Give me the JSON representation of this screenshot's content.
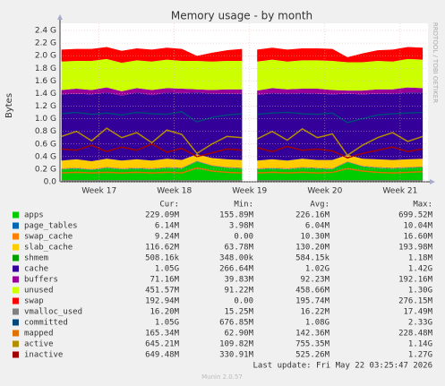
{
  "chart_data": {
    "type": "stacked-area",
    "title": "Memory usage - by month",
    "y_label": "Bytes",
    "side_note": "RRDTOOL / TOBI OETIKER",
    "footer": "Munin 2.0.57",
    "last_update": "Last update: Fri May 22 03:25:47 2026",
    "ylim": [
      0,
      2.4
    ],
    "yticks": [
      {
        "value": 0,
        "label": "0.0"
      },
      {
        "value": 0.2,
        "label": "0.2 G"
      },
      {
        "value": 0.4,
        "label": "0.4 G"
      },
      {
        "value": 0.6,
        "label": "0.6 G"
      },
      {
        "value": 0.8,
        "label": "0.8 G"
      },
      {
        "value": 1.0,
        "label": "1.0 G"
      },
      {
        "value": 1.2,
        "label": "1.2 G"
      },
      {
        "value": 1.4,
        "label": "1.4 G"
      },
      {
        "value": 1.6,
        "label": "1.6 G"
      },
      {
        "value": 1.8,
        "label": "1.8 G"
      },
      {
        "value": 2.0,
        "label": "2.0 G"
      },
      {
        "value": 2.2,
        "label": "2.2 G"
      },
      {
        "value": 2.4,
        "label": "2.4 G"
      }
    ],
    "xlim": [
      16.48,
      21.37
    ],
    "xticks": [
      {
        "value": 17,
        "label": "Week 17"
      },
      {
        "value": 18,
        "label": "Week 18"
      },
      {
        "value": 19,
        "label": "Week 19"
      },
      {
        "value": 20,
        "label": "Week 20"
      },
      {
        "value": 21,
        "label": "Week 21"
      }
    ],
    "grid": true,
    "x": [
      16.5,
      16.7,
      16.9,
      17.1,
      17.3,
      17.5,
      17.7,
      17.9,
      18.1,
      18.3,
      18.5,
      18.7,
      18.9,
      19.0,
      19.1,
      19.3,
      19.5,
      19.7,
      19.9,
      20.1,
      20.3,
      20.5,
      20.7,
      20.9,
      21.1,
      21.3
    ],
    "legend_columns": [
      "Cur:",
      "Min:",
      "Avg:",
      "Max:"
    ],
    "series": [
      {
        "name": "apps",
        "kind": "area",
        "color": "#00cc00",
        "stats": [
          "229.09M",
          "155.89M",
          "226.16M",
          "699.52M"
        ],
        "values": [
          0.2,
          0.21,
          0.19,
          0.22,
          0.2,
          0.21,
          0.2,
          0.22,
          0.21,
          0.32,
          0.25,
          0.22,
          0.21,
          null,
          0.2,
          0.21,
          0.2,
          0.22,
          0.21,
          0.2,
          0.31,
          0.24,
          0.22,
          0.21,
          0.22,
          0.23
        ]
      },
      {
        "name": "page_tables",
        "kind": "area",
        "color": "#0066b3",
        "stats": [
          "6.14M",
          "3.98M",
          "6.04M",
          "10.04M"
        ],
        "values": [
          0.006,
          0.006,
          0.006,
          0.006,
          0.006,
          0.006,
          0.006,
          0.006,
          0.006,
          0.006,
          0.006,
          0.006,
          0.006,
          null,
          0.006,
          0.006,
          0.006,
          0.006,
          0.006,
          0.006,
          0.006,
          0.006,
          0.006,
          0.006,
          0.006,
          0.006
        ]
      },
      {
        "name": "swap_cache",
        "kind": "area",
        "color": "#ff8000",
        "stats": [
          "9.24M",
          "0.00",
          "10.30M",
          "16.60M"
        ],
        "values": [
          0.01,
          0.01,
          0.01,
          0.01,
          0.01,
          0.01,
          0.01,
          0.01,
          0.01,
          0.01,
          0.01,
          0.01,
          0.01,
          null,
          0.01,
          0.01,
          0.01,
          0.01,
          0.01,
          0.01,
          0.01,
          0.01,
          0.01,
          0.01,
          0.01,
          0.01
        ]
      },
      {
        "name": "slab_cache",
        "kind": "area",
        "color": "#ffcc00",
        "stats": [
          "116.62M",
          "63.78M",
          "130.20M",
          "193.98M"
        ],
        "values": [
          0.12,
          0.13,
          0.12,
          0.13,
          0.12,
          0.13,
          0.12,
          0.13,
          0.12,
          0.1,
          0.11,
          0.12,
          0.12,
          null,
          0.12,
          0.13,
          0.12,
          0.13,
          0.12,
          0.13,
          0.1,
          0.11,
          0.12,
          0.12,
          0.12,
          0.12
        ]
      },
      {
        "name": "shmem",
        "kind": "area",
        "color": "#00a000",
        "stats": [
          "508.16k",
          "348.00k",
          "584.15k",
          "1.18M"
        ],
        "values": [
          0.0005,
          0.0005,
          0.0005,
          0.0005,
          0.0005,
          0.0005,
          0.0005,
          0.0005,
          0.0005,
          0.0005,
          0.0005,
          0.0005,
          0.0005,
          null,
          0.0005,
          0.0005,
          0.0005,
          0.0005,
          0.0005,
          0.0005,
          0.0005,
          0.0005,
          0.0005,
          0.0005,
          0.0005,
          0.0005
        ]
      },
      {
        "name": "cache",
        "kind": "area",
        "color": "#330099",
        "stats": [
          "1.05G",
          "266.64M",
          "1.02G",
          "1.42G"
        ],
        "values": [
          1.05,
          1.04,
          1.06,
          1.05,
          1.03,
          1.06,
          1.04,
          1.05,
          1.06,
          0.98,
          1.02,
          1.04,
          1.05,
          null,
          1.04,
          1.05,
          1.06,
          1.04,
          1.05,
          1.04,
          0.97,
          1.02,
          1.04,
          1.05,
          1.06,
          1.05
        ]
      },
      {
        "name": "buffers",
        "kind": "area",
        "color": "#990099",
        "stats": [
          "71.16M",
          "39.83M",
          "92.23M",
          "192.16M"
        ],
        "values": [
          0.07,
          0.08,
          0.07,
          0.08,
          0.07,
          0.07,
          0.08,
          0.07,
          0.07,
          0.05,
          0.06,
          0.07,
          0.07,
          null,
          0.07,
          0.08,
          0.07,
          0.07,
          0.08,
          0.07,
          0.05,
          0.06,
          0.07,
          0.07,
          0.08,
          0.07
        ]
      },
      {
        "name": "unused",
        "kind": "area",
        "color": "#ccff00",
        "stats": [
          "451.57M",
          "91.22M",
          "458.66M",
          "1.30G"
        ],
        "values": [
          0.45,
          0.44,
          0.46,
          0.45,
          0.45,
          0.44,
          0.45,
          0.45,
          0.44,
          0.45,
          0.45,
          0.45,
          0.45,
          null,
          0.46,
          0.45,
          0.44,
          0.45,
          0.45,
          0.46,
          0.45,
          0.45,
          0.45,
          0.44,
          0.45,
          0.45
        ]
      },
      {
        "name": "swap",
        "kind": "area",
        "color": "#ff0000",
        "stats": [
          "192.94M",
          "0.00",
          "195.74M",
          "276.15M"
        ],
        "values": [
          0.19,
          0.19,
          0.19,
          0.19,
          0.19,
          0.19,
          0.19,
          0.19,
          0.19,
          0.08,
          0.14,
          0.17,
          0.19,
          null,
          0.19,
          0.19,
          0.19,
          0.19,
          0.19,
          0.19,
          0.08,
          0.14,
          0.17,
          0.19,
          0.19,
          0.19
        ]
      },
      {
        "name": "vmalloc_used",
        "kind": "line",
        "color": "#808080",
        "stats": [
          "16.20M",
          "15.25M",
          "16.22M",
          "17.49M"
        ],
        "values": [
          0.016,
          0.016,
          0.016,
          0.016,
          0.016,
          0.016,
          0.016,
          0.016,
          0.016,
          0.016,
          0.016,
          0.016,
          0.016,
          null,
          0.016,
          0.016,
          0.016,
          0.016,
          0.016,
          0.016,
          0.016,
          0.016,
          0.016,
          0.016,
          0.016,
          0.016
        ]
      },
      {
        "name": "committed",
        "kind": "line",
        "color": "#00487d",
        "stats": [
          "1.05G",
          "676.85M",
          "1.08G",
          "2.33G"
        ],
        "values": [
          1.08,
          1.1,
          1.07,
          1.09,
          1.06,
          1.1,
          1.08,
          1.07,
          1.11,
          0.95,
          1.02,
          1.06,
          1.08,
          null,
          1.07,
          1.09,
          1.1,
          1.08,
          1.07,
          1.09,
          0.94,
          1.0,
          1.06,
          1.08,
          1.09,
          1.1
        ]
      },
      {
        "name": "mapped",
        "kind": "line",
        "color": "#e07000",
        "stats": [
          "165.34M",
          "62.90M",
          "142.36M",
          "228.48M"
        ],
        "values": [
          0.14,
          0.15,
          0.14,
          0.15,
          0.14,
          0.15,
          0.14,
          0.15,
          0.14,
          0.22,
          0.17,
          0.15,
          0.14,
          null,
          0.14,
          0.15,
          0.14,
          0.15,
          0.14,
          0.15,
          0.21,
          0.17,
          0.15,
          0.14,
          0.15,
          0.16
        ]
      },
      {
        "name": "active",
        "kind": "line",
        "color": "#b38f00",
        "stats": [
          "645.21M",
          "109.82M",
          "755.35M",
          "1.14G"
        ],
        "values": [
          0.72,
          0.8,
          0.65,
          0.85,
          0.7,
          0.78,
          0.62,
          0.82,
          0.75,
          0.45,
          0.6,
          0.72,
          0.7,
          null,
          0.68,
          0.8,
          0.66,
          0.84,
          0.7,
          0.76,
          0.42,
          0.58,
          0.7,
          0.78,
          0.64,
          0.72
        ]
      },
      {
        "name": "inactive",
        "kind": "line",
        "color": "#a00000",
        "stats": [
          "649.48M",
          "330.91M",
          "525.26M",
          "1.27G"
        ],
        "values": [
          0.52,
          0.5,
          0.58,
          0.48,
          0.55,
          0.5,
          0.6,
          0.47,
          0.53,
          0.4,
          0.46,
          0.52,
          0.5,
          null,
          0.54,
          0.48,
          0.56,
          0.5,
          0.52,
          0.49,
          0.38,
          0.45,
          0.5,
          0.55,
          0.48,
          0.52
        ]
      }
    ]
  }
}
